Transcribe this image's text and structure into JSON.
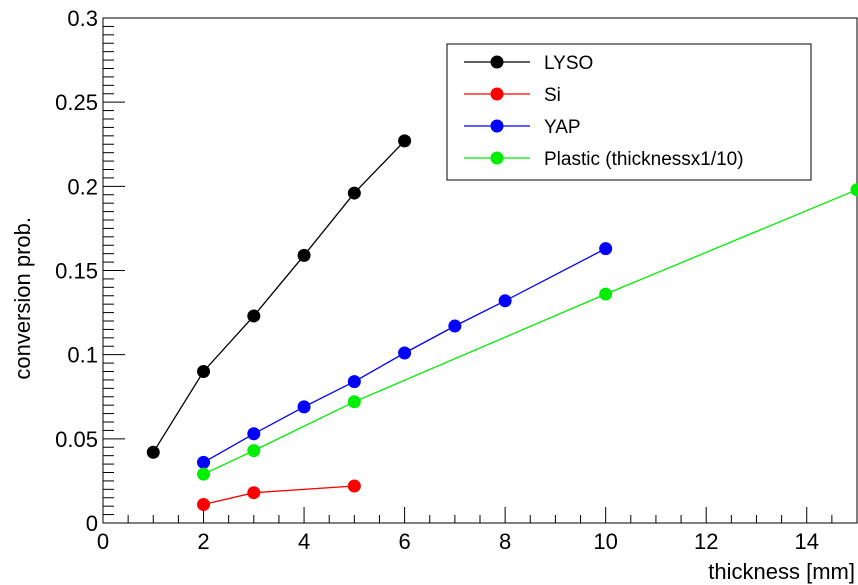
{
  "chart_data": {
    "type": "line",
    "title": "",
    "xlabel": "thickness [mm]",
    "ylabel": "conversion prob.",
    "xlim": [
      0,
      15
    ],
    "ylim": [
      0,
      0.3
    ],
    "x_ticks": [
      {
        "value": 0,
        "label": "0"
      },
      {
        "value": 2,
        "label": "2"
      },
      {
        "value": 4,
        "label": "4"
      },
      {
        "value": 6,
        "label": "6"
      },
      {
        "value": 8,
        "label": "8"
      },
      {
        "value": 10,
        "label": "10"
      },
      {
        "value": 12,
        "label": "12"
      },
      {
        "value": 14,
        "label": "14"
      }
    ],
    "y_ticks": [
      {
        "value": 0,
        "label": "0"
      },
      {
        "value": 0.05,
        "label": "0.05"
      },
      {
        "value": 0.1,
        "label": "0.1"
      },
      {
        "value": 0.15,
        "label": "0.15"
      },
      {
        "value": 0.2,
        "label": "0.2"
      },
      {
        "value": 0.25,
        "label": "0.25"
      },
      {
        "value": 0.3,
        "label": "0.3"
      }
    ],
    "grid": false,
    "legend_position": "top-right",
    "series": [
      {
        "name": "LYSO",
        "color": "#000000",
        "x": [
          1,
          2,
          3,
          4,
          5,
          6
        ],
        "y": [
          0.042,
          0.09,
          0.123,
          0.159,
          0.196,
          0.227
        ]
      },
      {
        "name": "Si",
        "color": "#ff0000",
        "x": [
          2,
          3,
          5
        ],
        "y": [
          0.011,
          0.018,
          0.022
        ]
      },
      {
        "name": "YAP",
        "color": "#0000ff",
        "x": [
          2,
          3,
          4,
          5,
          6,
          7,
          8,
          10
        ],
        "y": [
          0.036,
          0.053,
          0.069,
          0.084,
          0.101,
          0.117,
          0.132,
          0.163
        ]
      },
      {
        "name": "Plastic (thicknessx1/10)",
        "color": "#00ee00",
        "x": [
          2,
          3,
          5,
          10,
          15
        ],
        "y": [
          0.029,
          0.043,
          0.072,
          0.136,
          0.198
        ]
      }
    ]
  }
}
